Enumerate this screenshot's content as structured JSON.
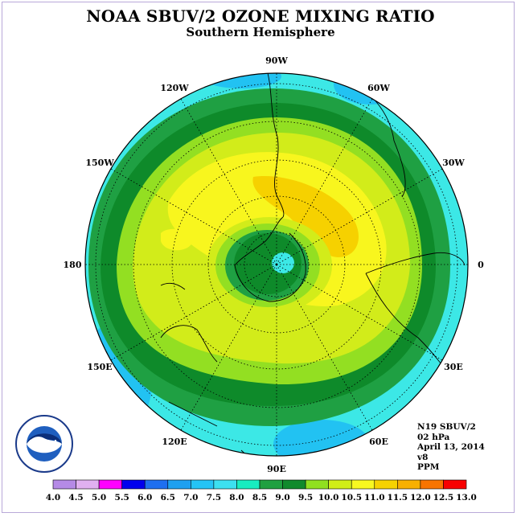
{
  "title": "NOAA SBUV/2 OZONE MIXING RATIO",
  "subtitle": "Southern Hemisphere",
  "map": {
    "projection": "south-polar-stereographic",
    "longitude_labels": [
      {
        "label": "0",
        "lon": 0
      },
      {
        "label": "30E",
        "lon": 30
      },
      {
        "label": "60E",
        "lon": 60
      },
      {
        "label": "90E",
        "lon": 90
      },
      {
        "label": "120E",
        "lon": 120
      },
      {
        "label": "150E",
        "lon": 150
      },
      {
        "label": "180",
        "lon": 180
      },
      {
        "label": "150W",
        "lon": -150
      },
      {
        "label": "120W",
        "lon": -120
      },
      {
        "label": "90W",
        "lon": -90
      },
      {
        "label": "60W",
        "lon": -60
      },
      {
        "label": "30W",
        "lon": -30
      }
    ]
  },
  "info": {
    "instrument": "N19 SBUV/2",
    "level": "02 hPa",
    "date": "April 13, 2014",
    "version": "v8",
    "units": "PPM"
  },
  "logo": {
    "text": "NOAA",
    "icon": "noaa-logo-icon"
  },
  "colorbar": {
    "ticks": [
      "4.0",
      "4.5",
      "5.0",
      "5.5",
      "6.0",
      "6.5",
      "7.0",
      "7.5",
      "8.0",
      "8.5",
      "9.0",
      "9.5",
      "10.0",
      "10.5",
      "11.0",
      "11.5",
      "12.0",
      "12.5",
      "13.0"
    ],
    "colors": [
      "#b58ae6",
      "#e0b0f0",
      "#ff00ff",
      "#0000ee",
      "#1e6ff0",
      "#1ea0f0",
      "#24c4f6",
      "#3ce0f0",
      "#18ecc0",
      "#20a040",
      "#108a2c",
      "#90e020",
      "#d0ee18",
      "#f8f820",
      "#f6d200",
      "#f8b000",
      "#f87400",
      "#f80000",
      "#9a6b3a"
    ]
  }
}
